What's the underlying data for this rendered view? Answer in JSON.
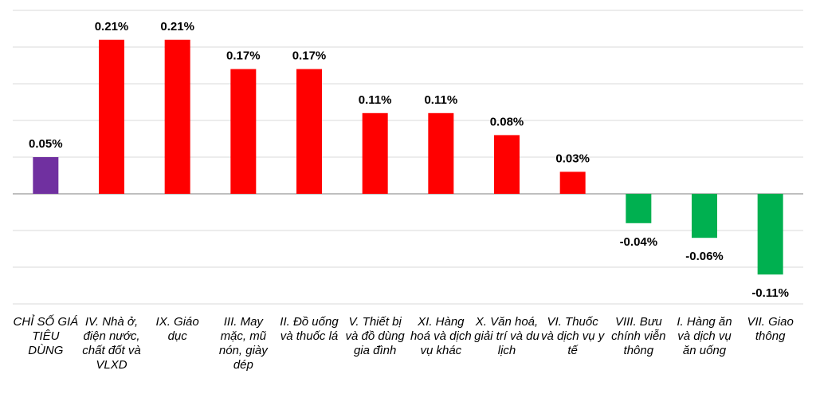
{
  "chart_data": {
    "type": "bar",
    "categories": [
      "CHỈ SỐ GIÁ TIÊU DÙNG",
      "IV. Nhà ở, điện nước, chất đốt và VLXD",
      "IX. Giáo dục",
      "III. May mặc, mũ nón, giày dép",
      "II. Đồ uống và thuốc lá",
      "V. Thiết bị và đồ dùng gia đình",
      "XI. Hàng hoá và dịch vụ khác",
      "X. Văn hoá, giải trí và du lịch",
      "VI. Thuốc và dịch vụ y tế",
      "VIII. Bưu chính viễn thông",
      "I. Hàng ăn và dịch vụ ăn uống",
      "VII. Giao thông"
    ],
    "values": [
      0.05,
      0.21,
      0.21,
      0.17,
      0.17,
      0.11,
      0.11,
      0.08,
      0.03,
      -0.04,
      -0.06,
      -0.11
    ],
    "value_labels": [
      "0.05%",
      "0.21%",
      "0.21%",
      "0.17%",
      "0.17%",
      "0.11%",
      "0.11%",
      "0.08%",
      "0.03%",
      "-0.04%",
      "-0.06%",
      "-0.11%"
    ],
    "colors": [
      "#7030a0",
      "#ff0000",
      "#ff0000",
      "#ff0000",
      "#ff0000",
      "#ff0000",
      "#ff0000",
      "#ff0000",
      "#ff0000",
      "#00b050",
      "#00b050",
      "#00b050"
    ],
    "ylim": [
      -0.15,
      0.25
    ],
    "yticks": [
      -0.15,
      -0.1,
      -0.05,
      0,
      0.05,
      0.1,
      0.15,
      0.2,
      0.25
    ],
    "grid": true
  }
}
